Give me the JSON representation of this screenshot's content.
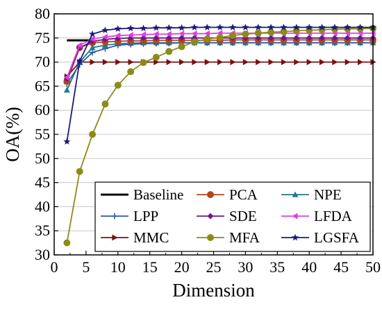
{
  "chart_data": {
    "type": "line",
    "title": "",
    "xlabel": "Dimension",
    "ylabel": "OA(%)",
    "xlim": [
      0,
      50
    ],
    "ylim": [
      30,
      80
    ],
    "xticks": [
      0,
      5,
      10,
      15,
      20,
      25,
      30,
      35,
      40,
      45,
      50
    ],
    "yticks": [
      30,
      35,
      40,
      45,
      50,
      55,
      60,
      65,
      70,
      75,
      80
    ],
    "grid": "horizontal",
    "legend_placement": "bottom-right",
    "x": [
      2,
      4,
      6,
      8,
      10,
      12,
      14,
      16,
      18,
      20,
      22,
      24,
      26,
      28,
      30,
      32,
      34,
      36,
      38,
      40,
      42,
      44,
      46,
      48,
      50
    ],
    "baseline": {
      "name": "Baseline",
      "color": "#000000",
      "x_range": [
        2,
        6
      ],
      "value": 74.5
    },
    "series": [
      {
        "name": "PCA",
        "color": "#b5451b",
        "marker": "circle",
        "values": [
          66.0,
          73.0,
          74.0,
          74.2,
          74.3,
          74.4,
          74.4,
          74.5,
          74.5,
          74.5,
          74.5,
          74.5,
          74.5,
          74.6,
          74.6,
          74.6,
          74.6,
          74.6,
          74.6,
          74.6,
          74.6,
          74.6,
          74.6,
          74.6,
          74.6
        ]
      },
      {
        "name": "NPE",
        "color": "#1f7a8c",
        "marker": "triangle-up",
        "values": [
          64.2,
          70.0,
          73.0,
          73.5,
          73.8,
          73.9,
          74.0,
          74.0,
          74.0,
          74.0,
          74.0,
          74.0,
          74.0,
          74.0,
          74.0,
          74.0,
          74.0,
          74.0,
          74.0,
          74.0,
          74.0,
          74.0,
          74.0,
          74.0,
          74.0
        ]
      },
      {
        "name": "LPP",
        "color": "#2a5caa",
        "marker": "plus",
        "values": [
          65.5,
          69.5,
          72.0,
          72.8,
          73.5,
          73.7,
          73.8,
          73.9,
          73.9,
          74.0,
          74.0,
          74.0,
          74.0,
          74.0,
          74.0,
          74.0,
          74.0,
          74.0,
          74.0,
          74.0,
          74.0,
          74.0,
          74.0,
          74.0,
          74.0
        ]
      },
      {
        "name": "SDE",
        "color": "#6a1b8a",
        "marker": "diamond",
        "values": [
          66.5,
          73.0,
          74.3,
          74.7,
          74.9,
          75.0,
          75.0,
          75.0,
          75.0,
          75.0,
          75.0,
          75.0,
          75.0,
          75.0,
          75.0,
          75.0,
          75.0,
          75.0,
          75.0,
          75.0,
          75.0,
          75.0,
          75.0,
          75.0,
          75.0
        ]
      },
      {
        "name": "LFDA",
        "color": "#e040e0",
        "marker": "triangle-left",
        "values": [
          66.8,
          73.5,
          74.8,
          75.2,
          75.5,
          75.6,
          75.7,
          75.8,
          75.8,
          75.9,
          75.9,
          75.9,
          76.0,
          76.0,
          76.0,
          76.0,
          76.0,
          76.0,
          76.0,
          76.0,
          76.0,
          76.0,
          76.0,
          76.0,
          76.0
        ]
      },
      {
        "name": "MMC",
        "color": "#7a1010",
        "marker": "triangle-right",
        "values": [
          67.0,
          70.0,
          70.0,
          70.0,
          70.0,
          70.0,
          70.0,
          70.0,
          70.0,
          70.0,
          70.0,
          70.0,
          70.0,
          70.0,
          70.0,
          70.0,
          70.0,
          70.0,
          70.0,
          70.0,
          70.0,
          70.0,
          70.0,
          70.0,
          70.0
        ]
      },
      {
        "name": "MFA",
        "color": "#8b8b1a",
        "marker": "circle",
        "values": [
          32.5,
          47.3,
          55.0,
          61.3,
          65.2,
          68.0,
          69.9,
          71.0,
          72.2,
          73.2,
          74.2,
          74.8,
          75.1,
          75.5,
          75.8,
          76.0,
          76.2,
          76.3,
          76.5,
          76.6,
          76.7,
          76.8,
          76.9,
          76.9,
          77.0
        ]
      },
      {
        "name": "LGSFA",
        "color": "#1a1a7a",
        "marker": "star",
        "values": [
          53.5,
          70.2,
          75.8,
          76.6,
          76.9,
          77.0,
          77.0,
          77.1,
          77.1,
          77.1,
          77.2,
          77.2,
          77.2,
          77.2,
          77.2,
          77.2,
          77.2,
          77.2,
          77.2,
          77.2,
          77.2,
          77.2,
          77.2,
          77.2,
          77.2
        ]
      }
    ],
    "legend": {
      "columns": [
        [
          "Baseline",
          "LPP",
          "MMC"
        ],
        [
          "PCA",
          "SDE",
          "MFA"
        ],
        [
          "NPE",
          "LFDA",
          "LGSFA"
        ]
      ]
    }
  }
}
